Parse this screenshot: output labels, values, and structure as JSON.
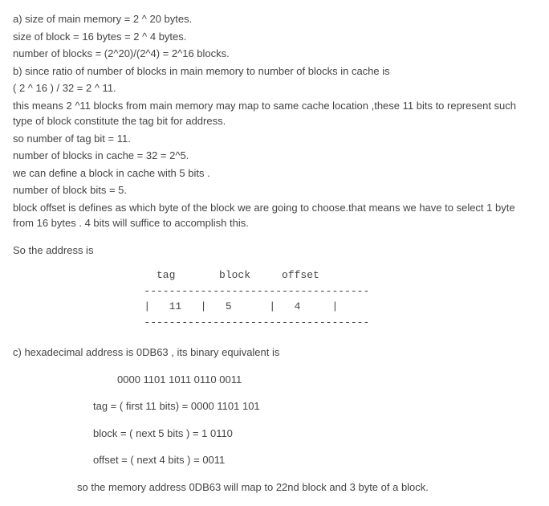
{
  "a1": "a) size of main memory = 2 ^ 20 bytes.",
  "a2": "size of block = 16 bytes = 2 ^ 4 bytes.",
  "a3": "number of blocks = (2^20)/(2^4) = 2^16 blocks.",
  "b1": "b) since ratio of number of blocks in main memory to number of blocks in cache is",
  "b2": "( 2 ^ 16 ) / 32 = 2 ^ 11.",
  "b3": "this means 2 ^11 blocks from main memory may map to same cache location ,these 11 bits to represent such type of block constitute the tag bit for address.",
  "b4": "so number of tag bit = 11.",
  "b5": "number of blocks in cache = 32 = 2^5.",
  "b6": "we can define a block in cache with 5 bits .",
  "b7": "number of block bits = 5.",
  "b8": "block offset is defines as which byte of the block we are going to choose.that means we have to select 1 byte from 16 bytes . 4 bits will suffice to accomplish this.",
  "s1": "So the address is",
  "diagram": "     tag       block     offset\n   ------------------------------------\n   |   11   |   5      |   4     |\n   ------------------------------------",
  "c1": "c) hexadecimal address is 0DB63    , its binary equivalent is",
  "c2": "0000 1101  1011  0110 0011",
  "c3": "tag = ( first 11 bits) = 0000 1101 101",
  "c4": "block = ( next 5 bits ) = 1 0110",
  "c5": "offset = ( next 4 bits ) = 0011",
  "c6": "so the memory address 0DB63 will map to 22nd block and 3 byte of a block."
}
